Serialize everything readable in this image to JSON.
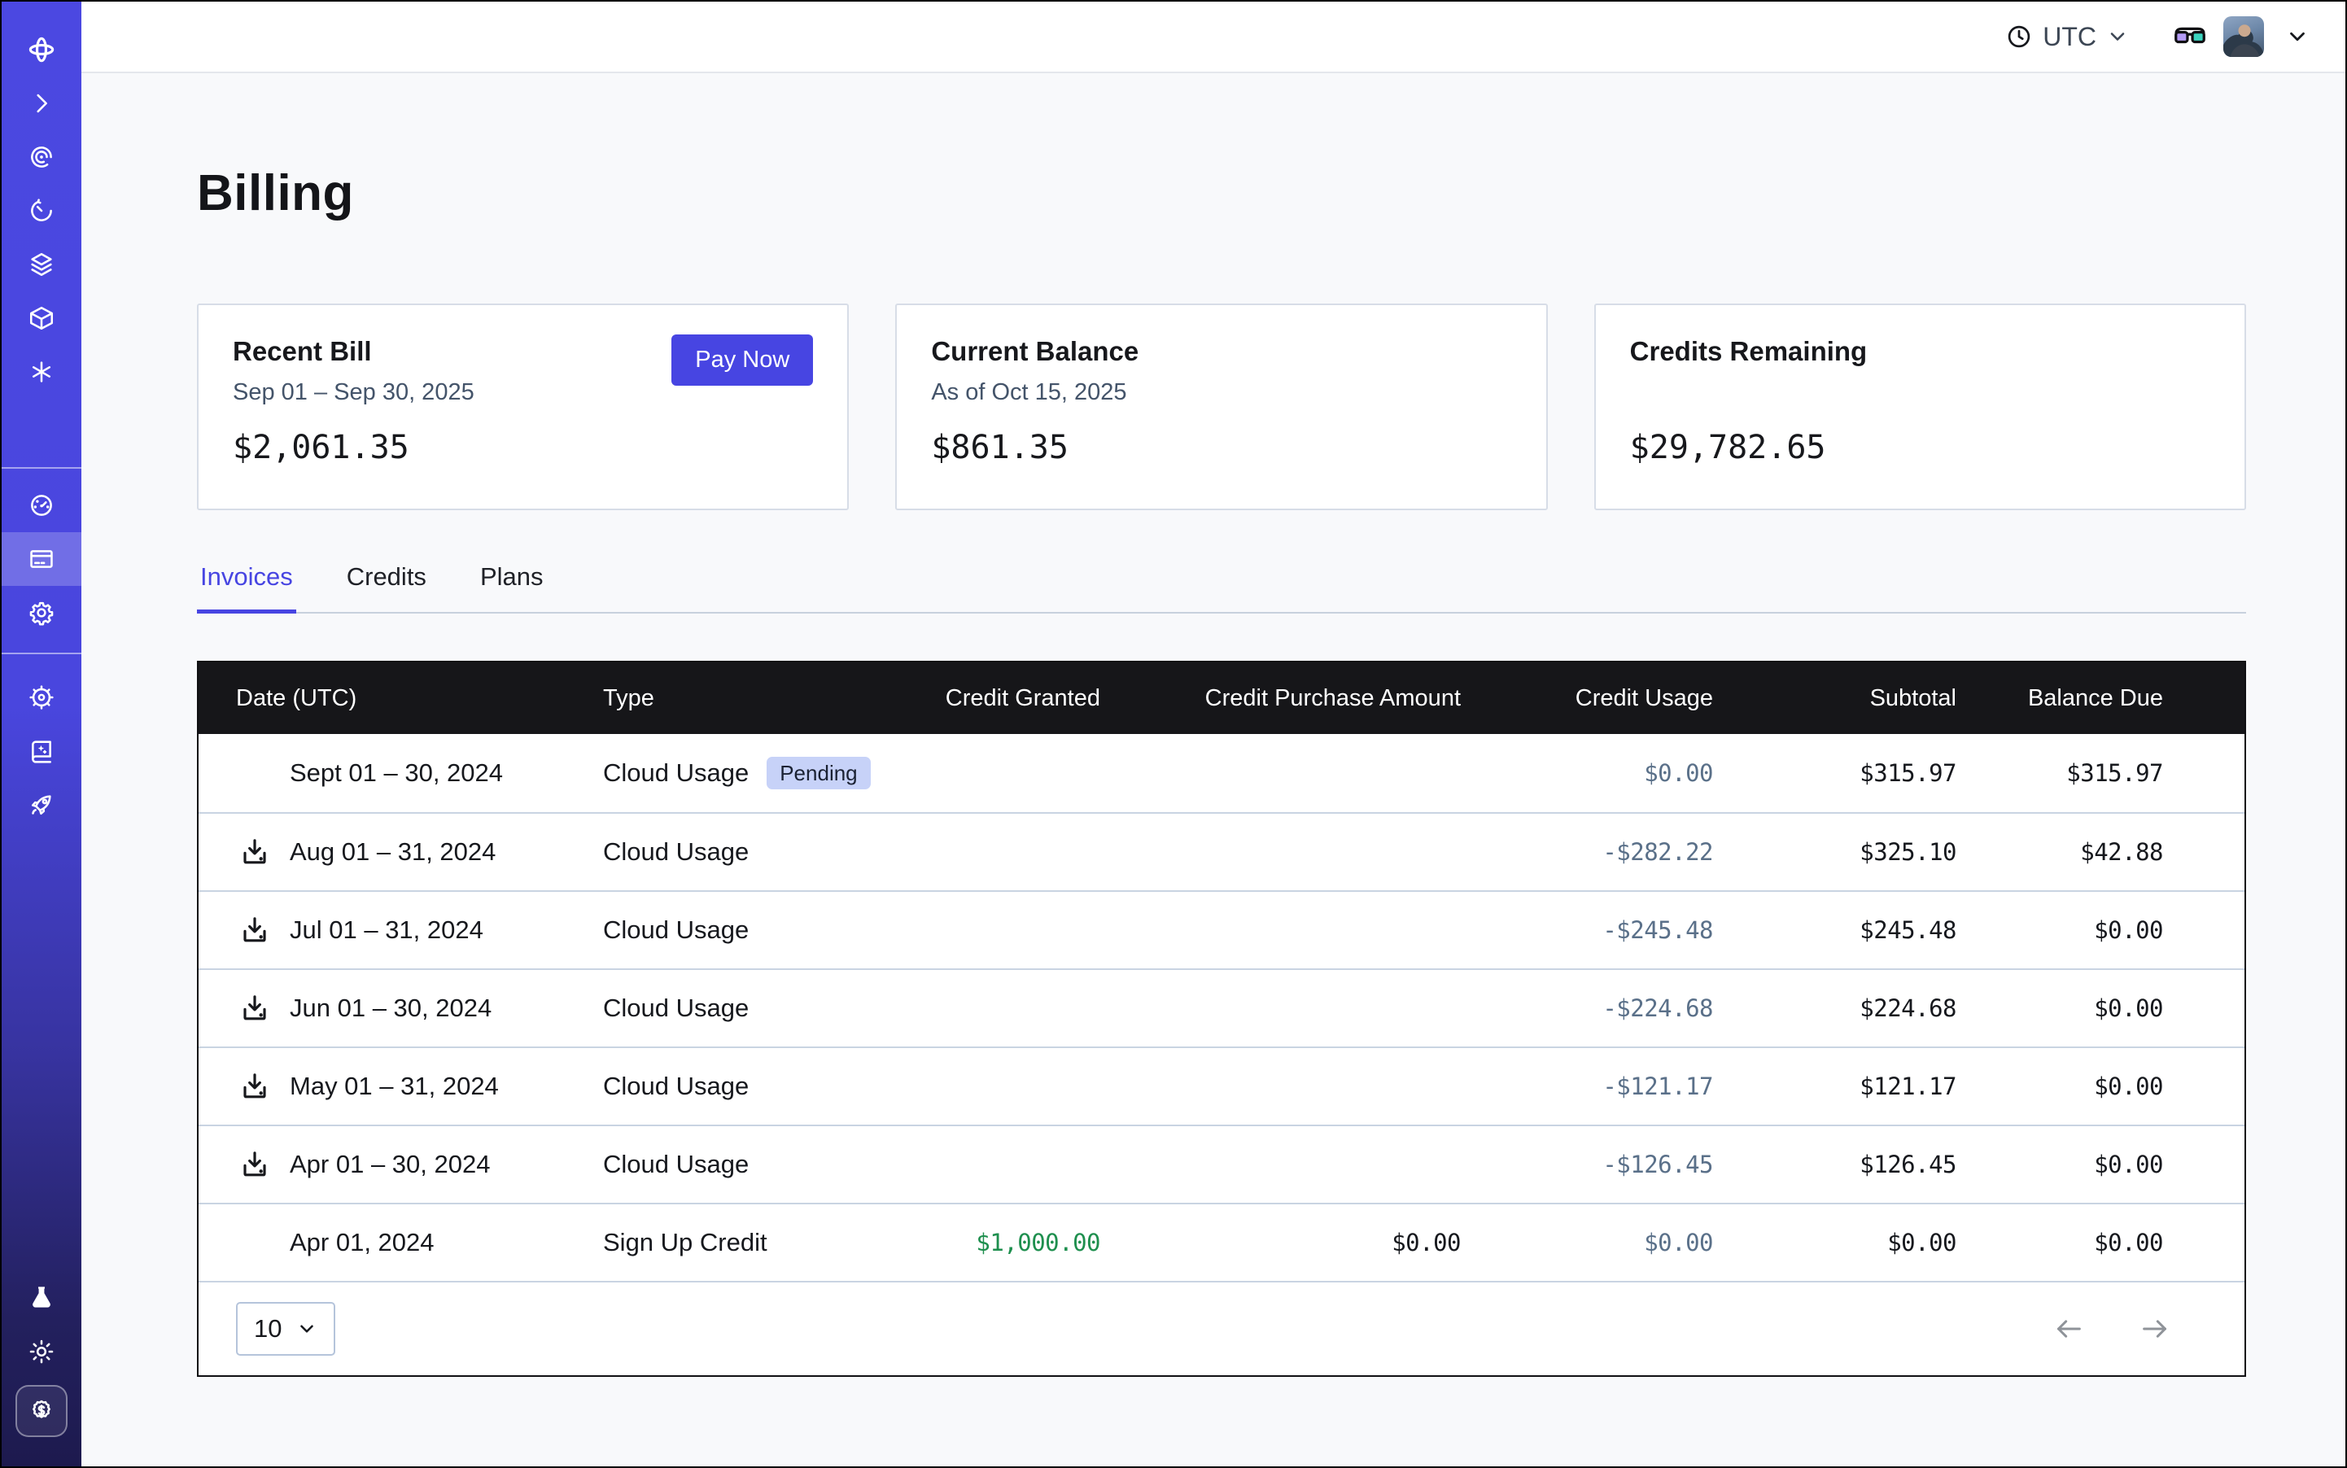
{
  "topbar": {
    "timezone": "UTC",
    "icons": [
      "clock-icon",
      "chevron-down-icon",
      "goggles-icon",
      "user-avatar",
      "chevron-down-icon"
    ]
  },
  "sidebar": {
    "groups": [
      {
        "items": [
          {
            "icon": "orbit-logo",
            "name": "sidebar-logo",
            "logo": true
          },
          {
            "icon": "chevron-right",
            "name": "sidebar-expand-button"
          },
          {
            "icon": "iris",
            "name": "sidebar-item-iris"
          },
          {
            "icon": "history",
            "name": "sidebar-item-history"
          },
          {
            "icon": "layers",
            "name": "sidebar-item-layers"
          },
          {
            "icon": "cube",
            "name": "sidebar-item-cube"
          },
          {
            "icon": "asterisk",
            "name": "sidebar-item-asterisk"
          }
        ]
      },
      {
        "items": [
          {
            "icon": "gauge",
            "name": "sidebar-item-usage"
          },
          {
            "icon": "billing-card",
            "name": "sidebar-item-billing",
            "active": true
          },
          {
            "icon": "gear",
            "name": "sidebar-item-settings"
          }
        ]
      },
      {
        "items": [
          {
            "icon": "wheel",
            "name": "sidebar-item-support"
          },
          {
            "icon": "book-sparkle",
            "name": "sidebar-item-docs"
          },
          {
            "icon": "rocket",
            "name": "sidebar-item-launch"
          }
        ]
      }
    ],
    "bottom": [
      {
        "icon": "flask",
        "name": "sidebar-item-labs"
      },
      {
        "icon": "sun",
        "name": "sidebar-item-theme-toggle"
      },
      {
        "icon": "dollar-badge",
        "name": "sidebar-item-credits",
        "boxed": true
      }
    ]
  },
  "page": {
    "title": "Billing"
  },
  "cards": [
    {
      "title": "Recent Bill",
      "subtitle": "Sep 01 – Sep 30, 2025",
      "amount": "$2,061.35",
      "action": "Pay Now"
    },
    {
      "title": "Current Balance",
      "subtitle": "As of Oct 15, 2025",
      "amount": "$861.35"
    },
    {
      "title": "Credits Remaining",
      "subtitle": "",
      "amount": "$29,782.65"
    }
  ],
  "tabs": [
    {
      "label": "Invoices",
      "active": true
    },
    {
      "label": "Credits",
      "active": false
    },
    {
      "label": "Plans",
      "active": false
    }
  ],
  "table": {
    "columns": [
      "Date (UTC)",
      "Type",
      "Credit Granted",
      "Credit Purchase Amount",
      "Credit Usage",
      "Subtotal",
      "Balance Due"
    ],
    "rows": [
      {
        "date": "Sept 01 – 30, 2024",
        "type": "Cloud Usage",
        "badge": "Pending",
        "download": false,
        "credit_granted": "",
        "credit_purchase": "",
        "credit_usage": "$0.00",
        "subtotal": "$315.97",
        "balance_due": "$315.97"
      },
      {
        "date": "Aug 01 – 31, 2024",
        "type": "Cloud Usage",
        "badge": "",
        "download": true,
        "credit_granted": "",
        "credit_purchase": "",
        "credit_usage": "-$282.22",
        "subtotal": "$325.10",
        "balance_due": "$42.88"
      },
      {
        "date": "Jul 01 – 31, 2024",
        "type": "Cloud Usage",
        "badge": "",
        "download": true,
        "credit_granted": "",
        "credit_purchase": "",
        "credit_usage": "-$245.48",
        "subtotal": "$245.48",
        "balance_due": "$0.00"
      },
      {
        "date": "Jun 01 – 30, 2024",
        "type": "Cloud Usage",
        "badge": "",
        "download": true,
        "credit_granted": "",
        "credit_purchase": "",
        "credit_usage": "-$224.68",
        "subtotal": "$224.68",
        "balance_due": "$0.00"
      },
      {
        "date": "May 01 – 31, 2024",
        "type": "Cloud Usage",
        "badge": "",
        "download": true,
        "credit_granted": "",
        "credit_purchase": "",
        "credit_usage": "-$121.17",
        "subtotal": "$121.17",
        "balance_due": "$0.00"
      },
      {
        "date": "Apr 01 – 30, 2024",
        "type": "Cloud Usage",
        "badge": "",
        "download": true,
        "credit_granted": "",
        "credit_purchase": "",
        "credit_usage": "-$126.45",
        "subtotal": "$126.45",
        "balance_due": "$0.00"
      },
      {
        "date": "Apr 01, 2024",
        "type": "Sign Up Credit",
        "badge": "",
        "download": false,
        "credit_granted": "$1,000.00",
        "credit_granted_green": true,
        "credit_purchase": "$0.00",
        "credit_usage": "$0.00",
        "subtotal": "$0.00",
        "balance_due": "$0.00"
      }
    ],
    "pagination": {
      "page_size": "10"
    }
  },
  "colors": {
    "accent": "#4745E2",
    "page_bg": "#F8F9FB",
    "table_header_bg": "#161619",
    "row_border": "#C9D4E2",
    "credit_usage_text": "#5A7089",
    "credit_granted_green": "#1E8F4E",
    "badge_bg": "#C7D2F8",
    "sidebar_top": "#4B48E1",
    "sidebar_bottom": "#1D1A4E"
  }
}
